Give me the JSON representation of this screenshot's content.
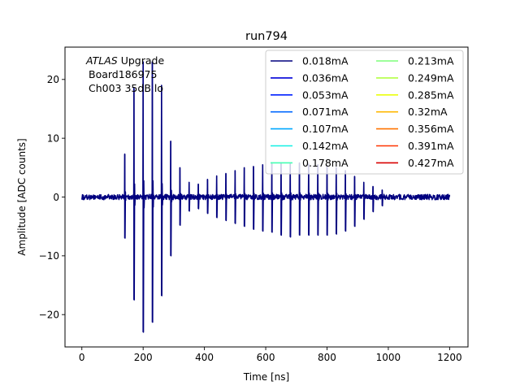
{
  "chart_data": {
    "type": "line",
    "title": "run794",
    "xlabel": "Time [ns]",
    "ylabel": "Amplitude [ADC counts]",
    "xlim": [
      -55,
      1260
    ],
    "ylim": [
      -25.5,
      25.5
    ],
    "xticks": [
      0,
      200,
      400,
      600,
      800,
      1000,
      1200
    ],
    "yticks": [
      -20,
      -10,
      0,
      10,
      20
    ],
    "grid": false,
    "annotation": {
      "line1_italic": "ATLAS",
      "line1_rest": " Upgrade",
      "line2": "Board186975",
      "line3": "Ch003 35dB lo"
    },
    "legend": {
      "placement": "top-right",
      "columns": 2,
      "entries": [
        {
          "name": "0.018mA",
          "color": "#00007f"
        },
        {
          "name": "0.036mA",
          "color": "#0000d8"
        },
        {
          "name": "0.053mA",
          "color": "#0020ff"
        },
        {
          "name": "0.071mA",
          "color": "#0068ff"
        },
        {
          "name": "0.107mA",
          "color": "#00a8ff"
        },
        {
          "name": "0.142mA",
          "color": "#12f0e4"
        },
        {
          "name": "0.178mA",
          "color": "#44ffb3"
        },
        {
          "name": "0.213mA",
          "color": "#7dff7a"
        },
        {
          "name": "0.249mA",
          "color": "#b3ff44"
        },
        {
          "name": "0.285mA",
          "color": "#eaff0c"
        },
        {
          "name": "0.32mA",
          "color": "#ffb700"
        },
        {
          "name": "0.356mA",
          "color": "#ff7300"
        },
        {
          "name": "0.391mA",
          "color": "#ff3300"
        },
        {
          "name": "0.427mA",
          "color": "#d80000"
        }
      ]
    },
    "series": [
      {
        "name": "0.018mA",
        "color": "#00007f",
        "baseline_noise": 0.5,
        "x_range": [
          0,
          1200
        ],
        "pulses": [
          {
            "t": 140,
            "max": 7.3,
            "min": -7.0
          },
          {
            "t": 170,
            "max": 18.5,
            "min": -17.5
          },
          {
            "t": 200,
            "max": 23.0,
            "min": -23.0
          },
          {
            "t": 230,
            "max": 23.0,
            "min": -21.3
          },
          {
            "t": 260,
            "max": 19.0,
            "min": -16.8
          },
          {
            "t": 290,
            "max": 9.5,
            "min": -10.0
          },
          {
            "t": 320,
            "max": 5.0,
            "min": -4.8
          },
          {
            "t": 350,
            "max": 2.5,
            "min": -2.4
          },
          {
            "t": 380,
            "max": 2.2,
            "min": -2.0
          },
          {
            "t": 410,
            "max": 3.0,
            "min": -2.8
          },
          {
            "t": 440,
            "max": 3.6,
            "min": -3.5
          },
          {
            "t": 470,
            "max": 4.0,
            "min": -4.0
          },
          {
            "t": 500,
            "max": 4.5,
            "min": -4.5
          },
          {
            "t": 530,
            "max": 5.0,
            "min": -5.0
          },
          {
            "t": 560,
            "max": 5.2,
            "min": -5.5
          },
          {
            "t": 590,
            "max": 5.5,
            "min": -5.8
          },
          {
            "t": 620,
            "max": 5.8,
            "min": -6.0
          },
          {
            "t": 650,
            "max": 5.8,
            "min": -6.5
          },
          {
            "t": 680,
            "max": 5.8,
            "min": -6.8
          },
          {
            "t": 710,
            "max": 5.8,
            "min": -6.5
          },
          {
            "t": 740,
            "max": 5.6,
            "min": -6.5
          },
          {
            "t": 770,
            "max": 5.5,
            "min": -6.5
          },
          {
            "t": 800,
            "max": 5.3,
            "min": -6.5
          },
          {
            "t": 830,
            "max": 5.0,
            "min": -6.3
          },
          {
            "t": 860,
            "max": 4.5,
            "min": -5.8
          },
          {
            "t": 890,
            "max": 3.5,
            "min": -5.0
          },
          {
            "t": 920,
            "max": 2.5,
            "min": -3.8
          },
          {
            "t": 950,
            "max": 1.8,
            "min": -2.5
          },
          {
            "t": 980,
            "max": 1.2,
            "min": -1.5
          }
        ]
      }
    ]
  }
}
